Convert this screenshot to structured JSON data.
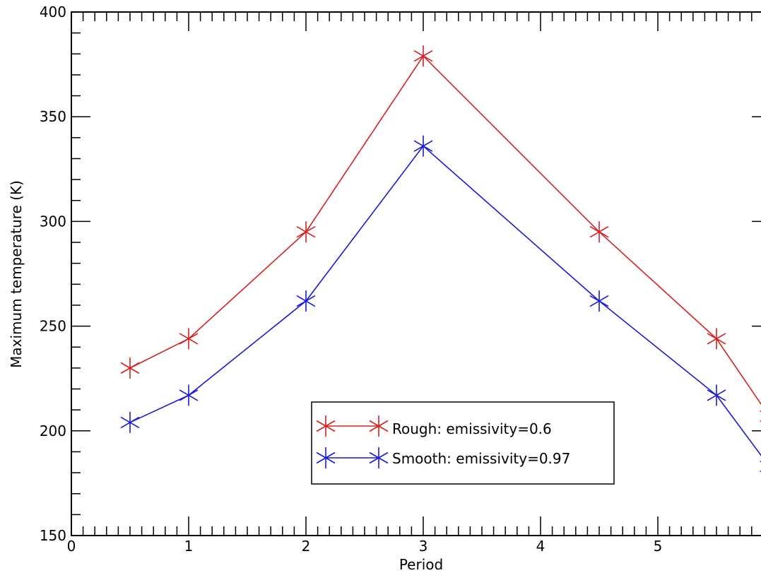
{
  "chart_data": {
    "type": "line",
    "title": "",
    "xlabel": "Period",
    "ylabel": "Maximum temperature (K)",
    "xlim": [
      0,
      5.85
    ],
    "ylim": [
      150,
      400
    ],
    "x_ticks": [
      0,
      1,
      2,
      3,
      4,
      5
    ],
    "y_ticks": [
      150,
      200,
      250,
      300,
      350,
      400
    ],
    "x_tick_labels": [
      "0",
      "1",
      "2",
      "3",
      "4",
      "5"
    ],
    "y_tick_labels": [
      "150",
      "200",
      "250",
      "300",
      "350",
      "400"
    ],
    "legend_position": "lower-center",
    "series": [
      {
        "name": "Rough: emissivity=0.6",
        "color": "#d62020",
        "marker": "star",
        "x": [
          0.5,
          1,
          2,
          3,
          4.5,
          5.5,
          5.95
        ],
        "y": [
          230,
          244,
          295,
          379,
          295,
          244,
          207
        ]
      },
      {
        "name": "Smooth: emissivity=0.97",
        "color": "#1a1ad6",
        "marker": "star",
        "x": [
          0.5,
          1,
          2,
          3,
          4.5,
          5.5,
          5.95
        ],
        "y": [
          204,
          217,
          262,
          336,
          262,
          217,
          183
        ]
      }
    ]
  }
}
